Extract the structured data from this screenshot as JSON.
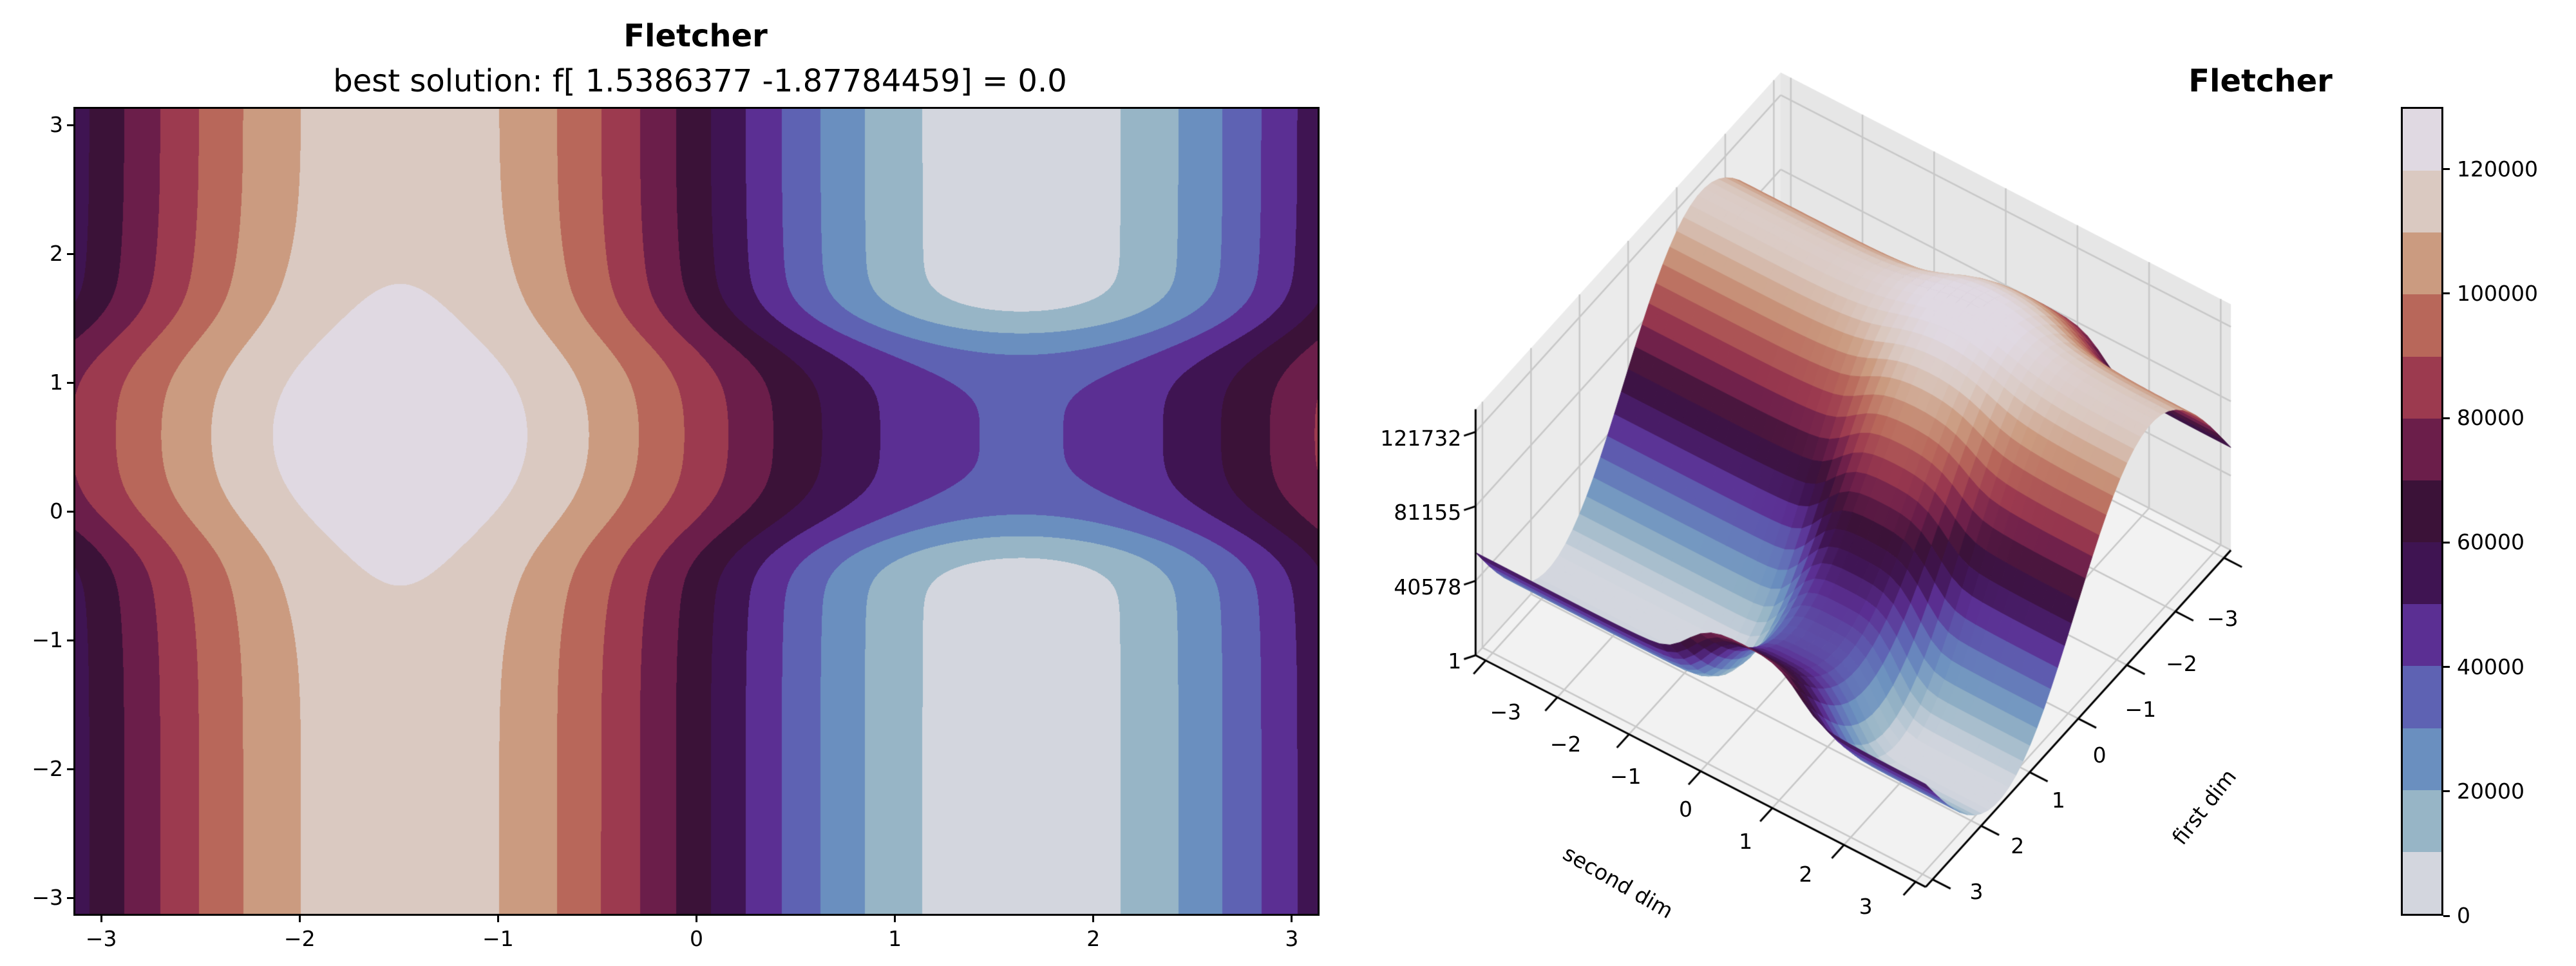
{
  "left_plot": {
    "title": "Fletcher",
    "subtitle": "best solution: f[ 1.5386377  -1.87784459] = 0.0",
    "x_ticks": [
      "−3",
      "−2",
      "−1",
      "0",
      "1",
      "2",
      "3"
    ],
    "y_ticks": [
      "−3",
      "−2",
      "−1",
      "0",
      "1",
      "2",
      "3"
    ]
  },
  "right_plot": {
    "title": "Fletcher",
    "z_ticks": [
      "1",
      "40578",
      "81155",
      "121732"
    ],
    "second_dim_ticks": [
      "−3",
      "−2",
      "−1",
      "0",
      "1",
      "2",
      "3"
    ],
    "first_dim_ticks": [
      "−3",
      "−2",
      "−1",
      "0",
      "1",
      "2",
      "3"
    ],
    "xlabel": "first dim",
    "ylabel": "second dim"
  },
  "colorbar": {
    "ticks": [
      "0",
      "20000",
      "40000",
      "60000",
      "80000",
      "100000",
      "120000"
    ]
  },
  "chart_data": [
    {
      "type": "heatmap",
      "subtype": "filled-contour",
      "title": "Fletcher",
      "subtitle": "best solution: f[ 1.5386377  -1.87784459] = 0.0",
      "best_solution": {
        "x": [
          1.5386377,
          -1.87784459
        ],
        "f": 0.0
      },
      "xlim": [
        -3.14,
        3.14
      ],
      "ylim": [
        -3.14,
        3.14
      ],
      "x_ticks": [
        -3,
        -2,
        -1,
        0,
        1,
        2,
        3
      ],
      "y_ticks": [
        -3,
        -2,
        -1,
        0,
        1,
        2,
        3
      ],
      "maximum_location": [
        -1.5,
        0.6
      ],
      "levels": [
        0,
        10000,
        20000,
        30000,
        40000,
        50000,
        60000,
        70000,
        80000,
        90000,
        100000,
        110000,
        120000,
        130000
      ],
      "colors": [
        "#d3d6de",
        "#97b5c6",
        "#6a8fbf",
        "#5e62b3",
        "#5b2f93",
        "#3f1452",
        "#3b1238",
        "#6b1e4a",
        "#9c3a4f",
        "#b8675a",
        "#cb9b80",
        "#dac9c1",
        "#e0d9e2"
      ],
      "colormap": "twilight"
    },
    {
      "type": "surface",
      "title": "Fletcher",
      "xlabel": "first dim",
      "ylabel": "second dim",
      "xlim": [
        -3.14,
        3.14
      ],
      "ylim": [
        -3.14,
        3.14
      ],
      "zlim": [
        1,
        121732
      ],
      "z_ticks": [
        1,
        40578,
        81155,
        121732
      ],
      "colorbar_range": [
        0,
        130000
      ],
      "colorbar_ticks": [
        0,
        20000,
        40000,
        60000,
        80000,
        100000,
        120000
      ]
    }
  ]
}
